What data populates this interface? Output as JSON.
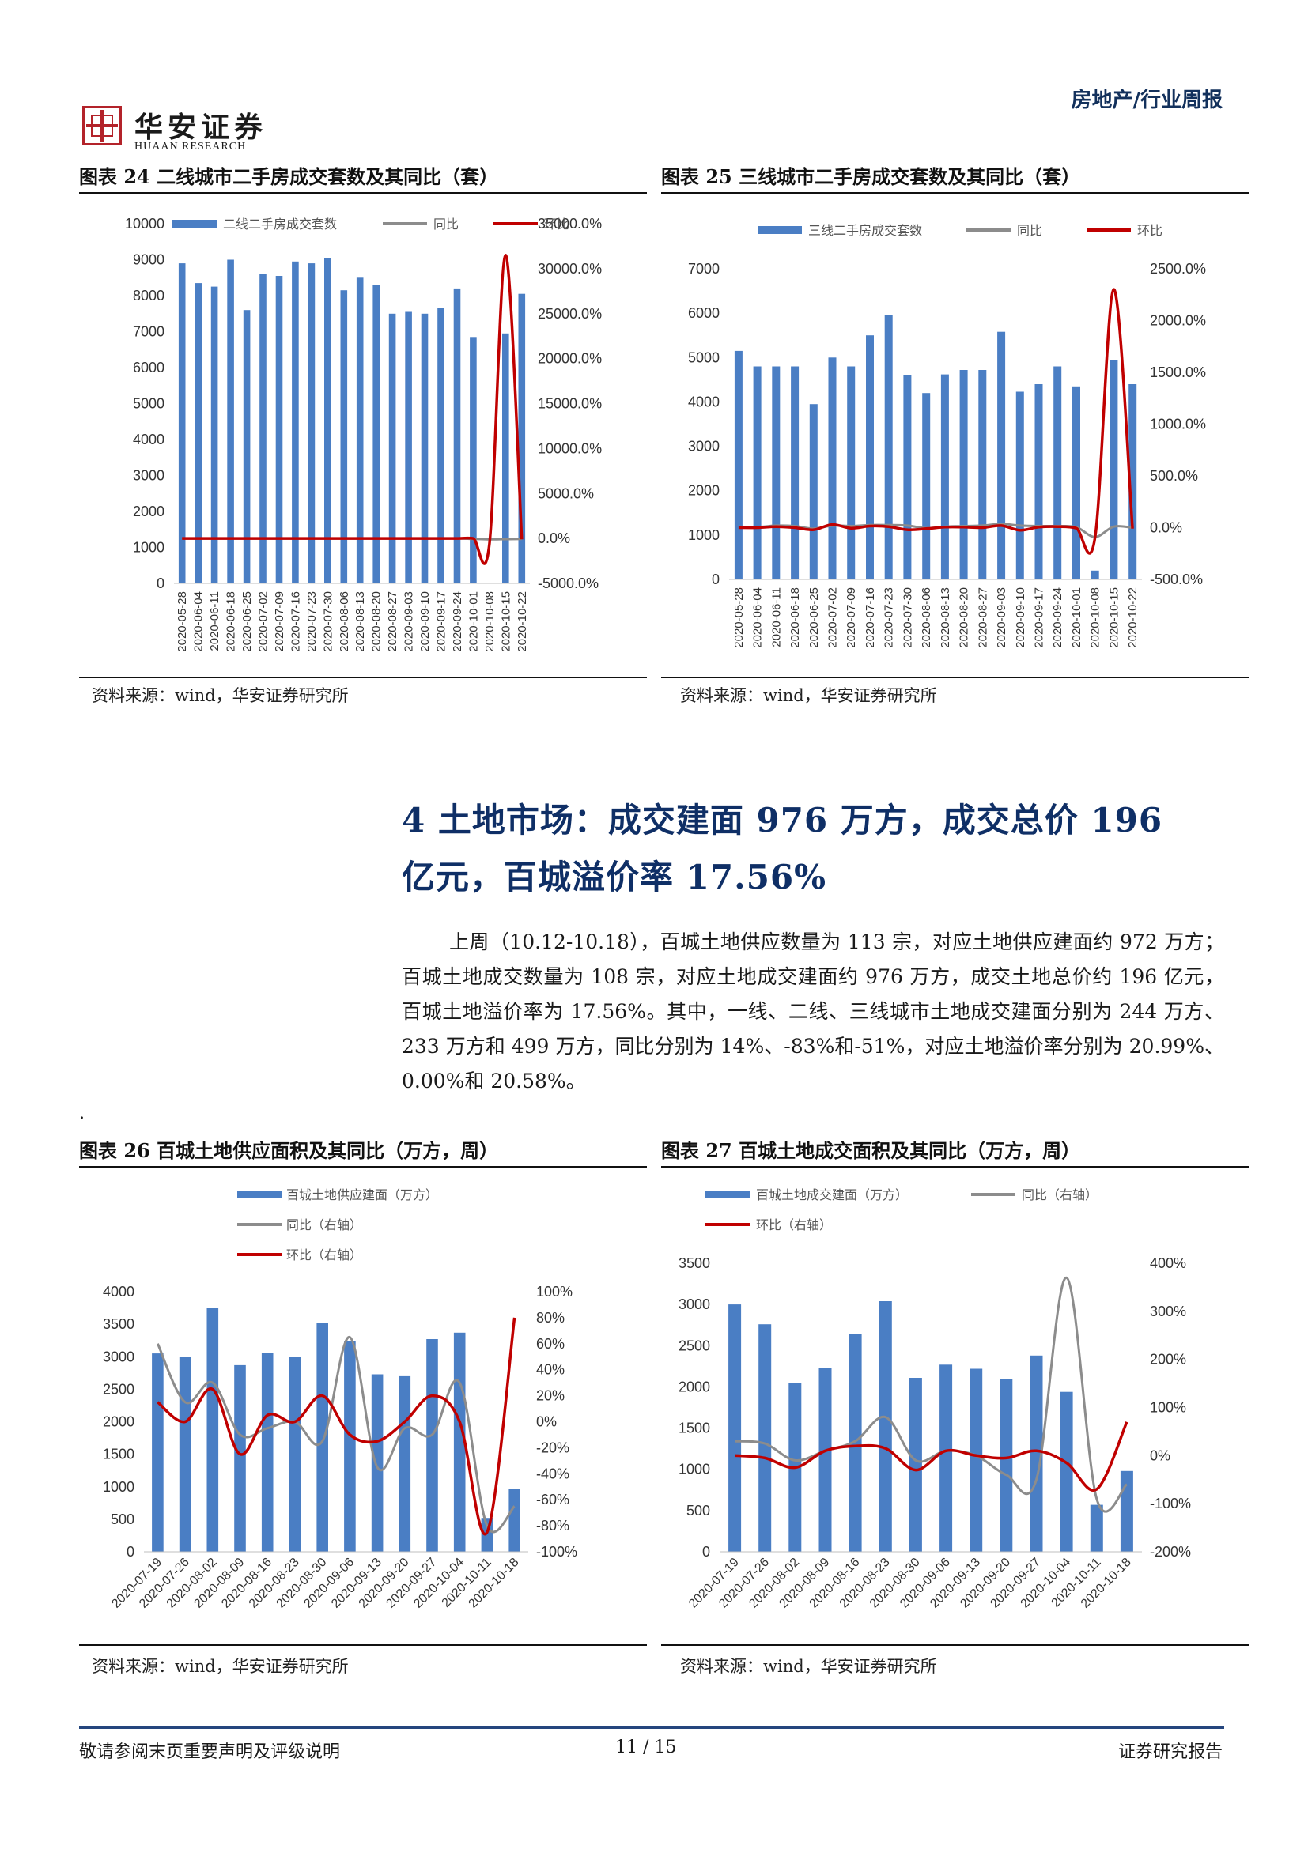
{
  "header": {
    "logo_cn": "华安证券",
    "logo_en": "HUAAN RESEARCH",
    "category": "房地产/行业周报"
  },
  "section": {
    "heading_line1": "4 土地市场：成交建面 976 万方，成交总价 196",
    "heading_line2": "亿元，百城溢价率 17.56%",
    "body": "上周（10.12-10.18），百城土地供应数量为 113 宗，对应土地供应建面约 972 万方；百城土地成交数量为 108 宗，对应土地成交建面约 976 万方，成交土地总价约 196 亿元，百城土地溢价率为 17.56%。其中，一线、二线、三线城市土地成交建面分别为 244 万方、233 万方和 499 万方，同比分别为 14%、-83%和-51%，对应土地溢价率分别为 20.99%、0.00%和 20.58%。",
    "stray_dot": "."
  },
  "figures": [
    {
      "title": "图表 24 二线城市二手房成交套数及其同比（套）",
      "source": "资料来源：wind，华安证券研究所",
      "chart_data": {
        "type": "bar",
        "categories": [
          "2020-05-28",
          "2020-06-04",
          "2020-06-11",
          "2020-06-18",
          "2020-06-25",
          "2020-07-02",
          "2020-07-09",
          "2020-07-16",
          "2020-07-23",
          "2020-07-30",
          "2020-08-06",
          "2020-08-13",
          "2020-08-20",
          "2020-08-27",
          "2020-09-03",
          "2020-09-10",
          "2020-09-17",
          "2020-09-24",
          "2020-10-01",
          "2020-10-08",
          "2020-10-15",
          "2020-10-22"
        ],
        "series": [
          {
            "name": "二线二手房成交套数",
            "axis": "left",
            "type": "bar",
            "color": "#4a7ec4",
            "values": [
              8900,
              8350,
              8250,
              9000,
              7600,
              8600,
              8550,
              8950,
              8900,
              9050,
              8150,
              8500,
              8300,
              7500,
              7550,
              7500,
              7650,
              8200,
              6850,
              0,
              6950,
              8050
            ]
          },
          {
            "name": "同比",
            "axis": "right",
            "type": "line",
            "color": "#8c8c8c",
            "values": [
              0,
              0,
              0,
              0,
              0,
              0,
              0,
              0,
              0,
              0,
              0,
              0,
              0,
              0,
              0,
              0,
              0,
              0,
              -50,
              -100,
              -80,
              -60
            ]
          },
          {
            "name": "环比",
            "axis": "right",
            "type": "line",
            "color": "#c00000",
            "values": [
              0,
              0,
              0,
              0,
              0,
              0,
              0,
              0,
              0,
              0,
              0,
              0,
              0,
              0,
              0,
              0,
              0,
              0,
              0,
              -600,
              31500,
              -100
            ]
          }
        ],
        "ylim_left": [
          0,
          10000
        ],
        "yticks_left": [
          "0",
          "1000",
          "2000",
          "3000",
          "4000",
          "5000",
          "6000",
          "7000",
          "8000",
          "9000",
          "10000"
        ],
        "ylim_right": [
          -5000,
          35000
        ],
        "yticks_right": [
          "-5000.0%",
          "0.0%",
          "5000.0%",
          "10000.0%",
          "15000.0%",
          "20000.0%",
          "25000.0%",
          "30000.0%",
          "35000.0%"
        ],
        "legend_position": "top"
      }
    },
    {
      "title": "图表 25 三线城市二手房成交套数及其同比（套）",
      "source": "资料来源：wind，华安证券研究所",
      "chart_data": {
        "type": "bar",
        "categories": [
          "2020-05-28",
          "2020-06-04",
          "2020-06-11",
          "2020-06-18",
          "2020-06-25",
          "2020-07-02",
          "2020-07-09",
          "2020-07-16",
          "2020-07-23",
          "2020-07-30",
          "2020-08-06",
          "2020-08-13",
          "2020-08-20",
          "2020-08-27",
          "2020-09-03",
          "2020-09-10",
          "2020-09-17",
          "2020-09-24",
          "2020-10-01",
          "2020-10-08",
          "2020-10-15",
          "2020-10-22"
        ],
        "series": [
          {
            "name": "三线二手房成交套数",
            "axis": "left",
            "type": "bar",
            "color": "#4a7ec4",
            "values": [
              5150,
              4800,
              4800,
              4800,
              3950,
              5000,
              4800,
              5500,
              5950,
              4600,
              4200,
              4620,
              4720,
              4720,
              5580,
              4230,
              4400,
              4800,
              4350,
              200,
              4950,
              4400
            ]
          },
          {
            "name": "同比",
            "axis": "right",
            "type": "line",
            "color": "#8c8c8c",
            "values": [
              10,
              5,
              20,
              15,
              -10,
              20,
              15,
              25,
              25,
              20,
              -5,
              10,
              15,
              20,
              35,
              20,
              15,
              15,
              5,
              -90,
              10,
              0
            ]
          },
          {
            "name": "环比",
            "axis": "right",
            "type": "line",
            "color": "#c00000",
            "values": [
              0,
              0,
              10,
              0,
              -20,
              30,
              -5,
              15,
              10,
              -20,
              -10,
              5,
              5,
              0,
              20,
              -25,
              5,
              10,
              -5,
              -95,
              2300,
              -10
            ]
          }
        ],
        "ylim_left": [
          0,
          7000
        ],
        "yticks_left": [
          "0",
          "1000",
          "2000",
          "3000",
          "4000",
          "5000",
          "6000",
          "7000"
        ],
        "ylim_right": [
          -500,
          2500
        ],
        "yticks_right": [
          "-500.0%",
          "0.0%",
          "500.0%",
          "1000.0%",
          "1500.0%",
          "2000.0%",
          "2500.0%"
        ],
        "legend_position": "top"
      }
    },
    {
      "title": "图表 26 百城土地供应面积及其同比（万方，周）",
      "source": "资料来源：wind，华安证券研究所",
      "chart_data": {
        "type": "bar",
        "categories": [
          "2020-07-19",
          "2020-07-26",
          "2020-08-02",
          "2020-08-09",
          "2020-08-16",
          "2020-08-23",
          "2020-08-30",
          "2020-09-06",
          "2020-09-13",
          "2020-09-20",
          "2020-09-27",
          "2020-10-04",
          "2020-10-11",
          "2020-10-18"
        ],
        "series": [
          {
            "name": "百城土地供应建面（万方）",
            "axis": "left",
            "type": "bar",
            "color": "#4a7ec4",
            "values": [
              3050,
              3000,
              3750,
              2870,
              3060,
              3000,
              3520,
              3240,
              2730,
              2700,
              3270,
              3370,
              520,
              970
            ]
          },
          {
            "name": "同比（右轴）",
            "axis": "right",
            "type": "line",
            "color": "#8c8c8c",
            "values": [
              60,
              15,
              30,
              -10,
              -5,
              0,
              -15,
              65,
              -35,
              -5,
              -10,
              30,
              -80,
              -65
            ]
          },
          {
            "name": "环比（右轴）",
            "axis": "right",
            "type": "line",
            "color": "#c00000",
            "values": [
              15,
              0,
              25,
              -25,
              5,
              0,
              20,
              -10,
              -15,
              0,
              20,
              0,
              -85,
              80
            ]
          }
        ],
        "ylim_left": [
          0,
          4000
        ],
        "yticks_left": [
          "0",
          "500",
          "1000",
          "1500",
          "2000",
          "2500",
          "3000",
          "3500",
          "4000"
        ],
        "ylim_right": [
          -100,
          100
        ],
        "yticks_right": [
          "-100%",
          "-80%",
          "-60%",
          "-40%",
          "-20%",
          "0%",
          "20%",
          "40%",
          "60%",
          "80%",
          "100%"
        ],
        "legend_position": "top-left"
      }
    },
    {
      "title": "图表 27 百城土地成交面积及其同比（万方，周）",
      "source": "资料来源：wind，华安证券研究所",
      "chart_data": {
        "type": "bar",
        "categories": [
          "2020-07-19",
          "2020-07-26",
          "2020-08-02",
          "2020-08-09",
          "2020-08-16",
          "2020-08-23",
          "2020-08-30",
          "2020-09-06",
          "2020-09-13",
          "2020-09-20",
          "2020-09-27",
          "2020-10-04",
          "2020-10-11",
          "2020-10-18"
        ],
        "series": [
          {
            "name": "百城土地成交建面（万方）",
            "axis": "left",
            "type": "bar",
            "color": "#4a7ec4",
            "values": [
              3000,
              2760,
              2050,
              2230,
              2640,
              3040,
              2110,
              2270,
              2220,
              2100,
              2380,
              1940,
              570,
              980
            ]
          },
          {
            "name": "同比（右轴）",
            "axis": "right",
            "type": "line",
            "color": "#8c8c8c",
            "values": [
              30,
              25,
              -10,
              10,
              30,
              80,
              -10,
              10,
              0,
              -40,
              -50,
              370,
              -90,
              -60
            ]
          },
          {
            "name": "环比（右轴）",
            "axis": "right",
            "type": "line",
            "color": "#c00000",
            "values": [
              0,
              -5,
              -25,
              10,
              20,
              15,
              -30,
              10,
              0,
              -5,
              10,
              -15,
              -70,
              70
            ]
          }
        ],
        "ylim_left": [
          0,
          3500
        ],
        "yticks_left": [
          "0",
          "500",
          "1000",
          "1500",
          "2000",
          "2500",
          "3000",
          "3500"
        ],
        "ylim_right": [
          -200,
          400
        ],
        "yticks_right": [
          "-200%",
          "-100%",
          "0%",
          "100%",
          "200%",
          "300%",
          "400%"
        ],
        "legend_position": "top-left"
      }
    }
  ],
  "footer": {
    "left": "敬请参阅末页重要声明及评级说明",
    "page": "11 / 15",
    "right": "证券研究报告"
  }
}
